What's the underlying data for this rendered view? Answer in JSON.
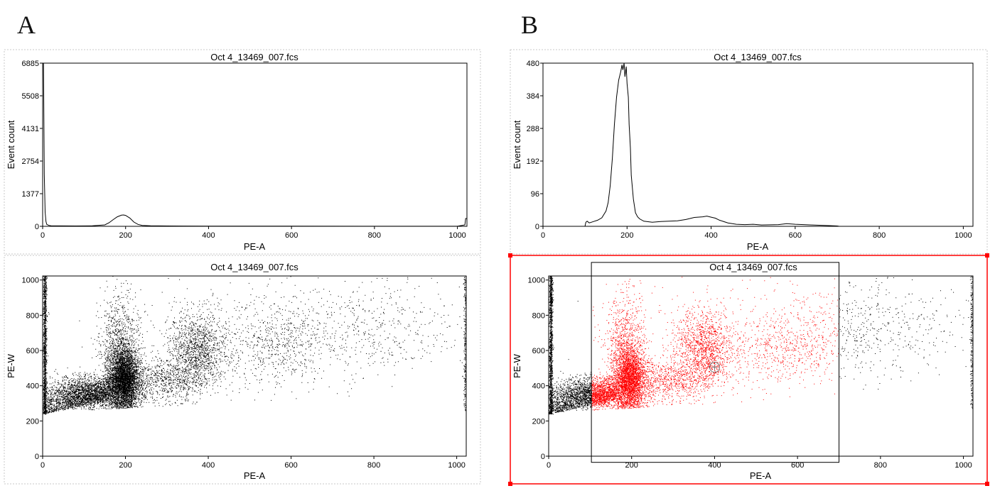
{
  "figure": {
    "panel_labels": [
      "A",
      "B"
    ]
  },
  "colors": {
    "axis": "#000000",
    "dots": "#000000",
    "gated_dots": "#ff0000",
    "selection": "#ff0000",
    "frame": "#c8c8c8"
  },
  "chart_data": [
    {
      "id": "A-top",
      "type": "line",
      "title": "Oct 4_13469_007.fcs",
      "xlabel": "PE-A",
      "ylabel": "Event count",
      "xlim": [
        0,
        1023
      ],
      "ylim": [
        0,
        6885
      ],
      "xticks": [
        0,
        200,
        400,
        600,
        800,
        1000
      ],
      "yticks": [
        0,
        1377,
        2754,
        4131,
        5508,
        6885
      ],
      "ytick_labels": [
        "0",
        "1377",
        "2754",
        "4131",
        "5508",
        "6885"
      ],
      "series": [
        {
          "name": "histogram",
          "x": [
            0,
            2,
            4,
            6,
            8,
            10,
            15,
            20,
            40,
            80,
            120,
            150,
            160,
            170,
            180,
            190,
            195,
            200,
            210,
            220,
            230,
            240,
            260,
            300,
            400,
            600,
            800,
            1000,
            1018,
            1020,
            1023
          ],
          "y": [
            6885,
            6885,
            2200,
            600,
            200,
            80,
            40,
            25,
            18,
            14,
            20,
            60,
            150,
            280,
            400,
            470,
            480,
            460,
            350,
            180,
            80,
            40,
            22,
            15,
            10,
            5,
            3,
            2,
            60,
            330,
            330
          ]
        }
      ]
    },
    {
      "id": "B-top",
      "type": "line",
      "title": "Oct 4_13469_007.fcs",
      "xlabel": "PE-A",
      "ylabel": "Event count",
      "xlim": [
        0,
        1023
      ],
      "ylim": [
        0,
        480
      ],
      "xticks": [
        0,
        200,
        400,
        600,
        800,
        1000
      ],
      "yticks": [
        0,
        96,
        192,
        288,
        384,
        480
      ],
      "ytick_labels": [
        "0",
        "96",
        "192",
        "288",
        "384",
        "480"
      ],
      "series": [
        {
          "name": "gated histogram",
          "x": [
            0,
            100,
            102,
            105,
            110,
            120,
            130,
            140,
            150,
            155,
            160,
            165,
            170,
            175,
            180,
            185,
            188,
            190,
            193,
            195,
            198,
            200,
            203,
            205,
            208,
            210,
            215,
            220,
            225,
            230,
            240,
            260,
            280,
            300,
            320,
            340,
            360,
            380,
            390,
            400,
            410,
            420,
            440,
            460,
            480,
            500,
            520,
            560,
            580,
            600,
            640,
            680,
            700,
            705,
            1023
          ],
          "y": [
            0,
            0,
            12,
            15,
            10,
            14,
            18,
            25,
            45,
            70,
            120,
            200,
            300,
            380,
            430,
            455,
            475,
            460,
            480,
            440,
            470,
            420,
            380,
            300,
            230,
            150,
            80,
            40,
            28,
            22,
            15,
            12,
            14,
            15,
            16,
            20,
            26,
            28,
            30,
            27,
            24,
            18,
            10,
            6,
            5,
            6,
            4,
            5,
            8,
            6,
            4,
            2,
            1,
            0,
            0
          ]
        }
      ]
    },
    {
      "id": "A-bottom",
      "type": "scatter",
      "title": "Oct 4_13469_007.fcs",
      "xlabel": "PE-A",
      "ylabel": "PE-W",
      "xlim": [
        0,
        1023
      ],
      "ylim": [
        0,
        1023
      ],
      "xticks": [
        0,
        200,
        400,
        600,
        800,
        1000
      ],
      "yticks": [
        0,
        200,
        400,
        600,
        800,
        1000
      ],
      "ytick_labels": [
        "0",
        "200",
        "400",
        "600",
        "800",
        "1000"
      ],
      "clusters": [
        {
          "cx": 195,
          "cy": 440,
          "sx": 18,
          "sy": 85,
          "n": 6000
        },
        {
          "cx": 185,
          "cy": 620,
          "sx": 25,
          "sy": 150,
          "n": 900
        },
        {
          "cx": 110,
          "cy": 360,
          "sx": 50,
          "sy": 45,
          "n": 1800
        },
        {
          "cx": 290,
          "cy": 430,
          "sx": 45,
          "sy": 60,
          "n": 700
        },
        {
          "cx": 375,
          "cy": 600,
          "sx": 35,
          "sy": 110,
          "n": 1400
        },
        {
          "cx": 560,
          "cy": 620,
          "sx": 70,
          "sy": 110,
          "n": 600
        },
        {
          "cx": 780,
          "cy": 700,
          "sx": 120,
          "sy": 130,
          "n": 450
        },
        {
          "cx": 600,
          "cy": 820,
          "sx": 250,
          "sy": 150,
          "n": 250
        }
      ],
      "edge_columns": [
        {
          "x": 5,
          "ymin": 240,
          "ymax": 1023,
          "n": 1200
        },
        {
          "x": 1020,
          "ymin": 260,
          "ymax": 1023,
          "n": 250
        }
      ],
      "floor": {
        "xmin": 0,
        "xmax": 160,
        "ystart": 240,
        "yend": 320,
        "n": 1200
      }
    },
    {
      "id": "B-bottom",
      "type": "scatter",
      "title": "Oct 4_13469_007.fcs",
      "xlabel": "PE-A",
      "ylabel": "PE-W",
      "xlim": [
        0,
        1023
      ],
      "ylim": [
        0,
        1023
      ],
      "xticks": [
        0,
        200,
        400,
        600,
        800,
        1000
      ],
      "yticks": [
        0,
        200,
        400,
        600,
        800,
        1000
      ],
      "ytick_labels": [
        "0",
        "200",
        "400",
        "600",
        "800",
        "1000"
      ],
      "gate": {
        "xmin": 103,
        "xmax": 700,
        "ymin": -35,
        "ymax": 1100
      },
      "gate_handle": {
        "x": 400,
        "y": 505
      },
      "clusters": [
        {
          "cx": 195,
          "cy": 440,
          "sx": 18,
          "sy": 85,
          "n": 6000
        },
        {
          "cx": 185,
          "cy": 620,
          "sx": 25,
          "sy": 150,
          "n": 900
        },
        {
          "cx": 110,
          "cy": 360,
          "sx": 50,
          "sy": 45,
          "n": 1800
        },
        {
          "cx": 290,
          "cy": 430,
          "sx": 45,
          "sy": 60,
          "n": 700
        },
        {
          "cx": 375,
          "cy": 600,
          "sx": 35,
          "sy": 110,
          "n": 1400
        },
        {
          "cx": 560,
          "cy": 620,
          "sx": 70,
          "sy": 110,
          "n": 600
        },
        {
          "cx": 780,
          "cy": 700,
          "sx": 120,
          "sy": 130,
          "n": 450
        },
        {
          "cx": 600,
          "cy": 820,
          "sx": 250,
          "sy": 150,
          "n": 250
        }
      ],
      "edge_columns": [
        {
          "x": 5,
          "ymin": 240,
          "ymax": 1023,
          "n": 1200
        },
        {
          "x": 1020,
          "ymin": 260,
          "ymax": 1023,
          "n": 250
        }
      ],
      "floor": {
        "xmin": 0,
        "xmax": 160,
        "ystart": 240,
        "yend": 320,
        "n": 1200
      }
    }
  ]
}
